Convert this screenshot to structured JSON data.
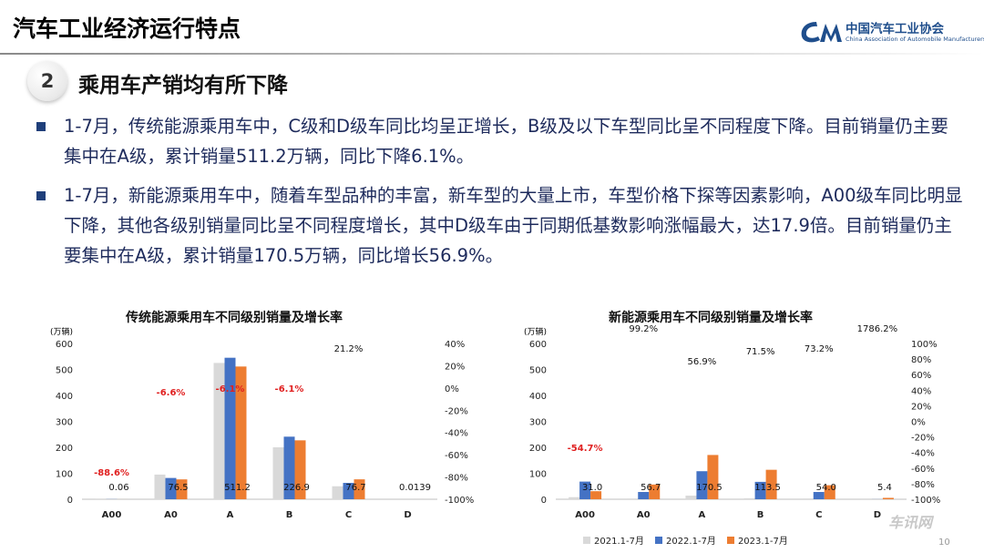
{
  "header": {
    "title": "汽车工业经济运行特点",
    "logo_cn": "中国汽车工业协会",
    "logo_en": "China Association of Automobile Manufacturers"
  },
  "section": {
    "number": "2",
    "title": "乘用车产销均有所下降"
  },
  "bullets": [
    "1-7月，传统能源乘用车中，C级和D级车同比均呈正增长，B级及以下车型同比呈不同程度下降。目前销量仍主要集中在A级，累计销量511.2万辆，同比下降6.1%。",
    "1-7月，新能源乘用车中，随着车型品种的丰富，新车型的大量上市，车型价格下探等因素影响，A00级车同比明显下降，其他各级别销量同比呈不同程度增长，其中D级车由于同期低基数影响涨幅最大，达17.9倍。目前销量仍主要集中在A级，累计销量170.5万辆，同比增长56.9%。"
  ],
  "colors": {
    "s2021": "#d9d9d9",
    "s2022": "#4472c4",
    "s2023": "#ed7d31",
    "negative_label": "#e02020",
    "bullet_text": "#1e2b5c"
  },
  "legend": [
    "2021.1-7月",
    "2022.1-7月",
    "2023.1-7月"
  ],
  "page_number": "10",
  "corner_logo": "车讯网",
  "chart_data": [
    {
      "type": "bar",
      "title": "传统能源乘用车不同级别销量及增长率",
      "unit": "(万辆)",
      "categories": [
        "A00",
        "A0",
        "A",
        "B",
        "C",
        "D"
      ],
      "series": [
        {
          "name": "2021.1-7月",
          "values": [
            0.5,
            95,
            525,
            200,
            50,
            0
          ]
        },
        {
          "name": "2022.1-7月",
          "values": [
            0.5,
            82,
            545,
            241,
            63,
            0
          ]
        },
        {
          "name": "2023.1-7月",
          "values": [
            0.06,
            76.5,
            511.2,
            226.9,
            76.7,
            0.0139
          ]
        }
      ],
      "value_labels": [
        "0.06",
        "76.5",
        "511.2",
        "226.9",
        "76.7",
        "0.0139"
      ],
      "growth_labels": [
        "-88.6%",
        "-6.6%",
        "-6.1%",
        "-6.1%",
        "21.2%",
        ""
      ],
      "ylim": [
        0,
        600
      ],
      "yticks": [
        "0",
        "100",
        "200",
        "300",
        "400",
        "500",
        "600"
      ],
      "y2ticks": [
        "-100%",
        "-80%",
        "-60%",
        "-40%",
        "-20%",
        "0%",
        "20%",
        "40%"
      ]
    },
    {
      "type": "bar",
      "title": "新能源乘用车不同级别销量及增长率",
      "unit": "(万辆)",
      "categories": [
        "A00",
        "A0",
        "A",
        "B",
        "C",
        "D"
      ],
      "series": [
        {
          "name": "2021.1-7月",
          "values": [
            8,
            3,
            14,
            4,
            3,
            0.2
          ]
        },
        {
          "name": "2022.1-7月",
          "values": [
            68,
            28,
            108,
            67,
            28,
            0.3
          ]
        },
        {
          "name": "2023.1-7月",
          "values": [
            31.0,
            56.7,
            170.5,
            113.5,
            54.0,
            5.4
          ]
        }
      ],
      "value_labels": [
        "31.0",
        "56.7",
        "170.5",
        "113.5",
        "54.0",
        "5.4"
      ],
      "growth_labels": [
        "-54.7%",
        "99.2%",
        "56.9%",
        "71.5%",
        "73.2%",
        "1786.2%"
      ],
      "ylim": [
        0,
        600
      ],
      "yticks": [
        "0",
        "100",
        "200",
        "300",
        "400",
        "500",
        "600"
      ],
      "y2ticks": [
        "-100%",
        "-80%",
        "-60%",
        "-40%",
        "-20%",
        "0%",
        "20%",
        "40%",
        "60%",
        "80%",
        "100%"
      ]
    }
  ]
}
